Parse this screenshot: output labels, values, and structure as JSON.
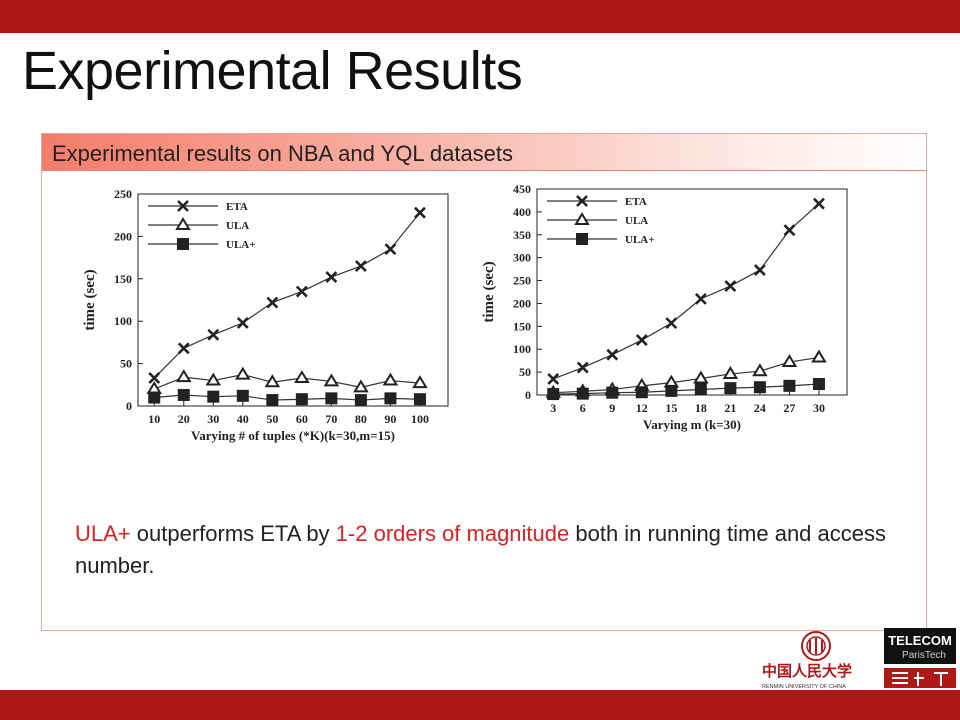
{
  "slide": {
    "title": "Experimental Results",
    "colors": {
      "accent": "#b01818",
      "header_gradient": "#f47c6b",
      "highlight": "#e02020"
    }
  },
  "panel": {
    "header": "Experimental results on NBA and YQL datasets"
  },
  "description": {
    "part1": "ULA+",
    "part2": " outperforms ETA by ",
    "part3": "1-2 orders of magnitude",
    "part4": " both in running time and access number."
  },
  "logos": {
    "ruc_text": "中国人民大学",
    "ruc_sub": "RENMIN UNIVERSITY OF CHINA",
    "telecom_line1": "TELECOM",
    "telecom_line2": "ParisTech"
  },
  "chart_data": [
    {
      "type": "line",
      "x": [
        10,
        20,
        30,
        40,
        50,
        60,
        70,
        80,
        90,
        100
      ],
      "xlabel": "Varying # of tuples (*K)(k=30,m=15)",
      "ylabel": "time (sec)",
      "ylim": [
        0,
        250
      ],
      "yticks": [
        0,
        50,
        100,
        150,
        200,
        250
      ],
      "legend_position": "top-left",
      "series": [
        {
          "name": "ETA",
          "marker": "x",
          "values": [
            33,
            68,
            84,
            98,
            122,
            135,
            152,
            165,
            185,
            228
          ]
        },
        {
          "name": "ULA",
          "marker": "triangle",
          "values": [
            20,
            34,
            30,
            37,
            28,
            33,
            29,
            22,
            30,
            27
          ]
        },
        {
          "name": "ULA+",
          "marker": "square",
          "values": [
            10,
            13,
            11,
            12,
            7,
            8,
            9,
            7,
            9,
            8
          ]
        }
      ]
    },
    {
      "type": "line",
      "x": [
        3,
        6,
        9,
        12,
        15,
        18,
        21,
        24,
        27,
        30
      ],
      "xlabel": "Varying m (k=30)",
      "ylabel": "time (sec)",
      "ylim": [
        0,
        450
      ],
      "yticks": [
        0,
        50,
        100,
        150,
        200,
        250,
        300,
        350,
        400,
        450
      ],
      "legend_position": "top-left",
      "series": [
        {
          "name": "ETA",
          "marker": "x",
          "values": [
            35,
            60,
            88,
            120,
            157,
            210,
            238,
            273,
            360,
            418
          ]
        },
        {
          "name": "ULA",
          "marker": "triangle",
          "values": [
            5,
            8,
            12,
            20,
            27,
            36,
            46,
            52,
            72,
            82
          ]
        },
        {
          "name": "ULA+",
          "marker": "square",
          "values": [
            2,
            3,
            5,
            6,
            9,
            12,
            15,
            17,
            20,
            24
          ]
        }
      ]
    }
  ]
}
